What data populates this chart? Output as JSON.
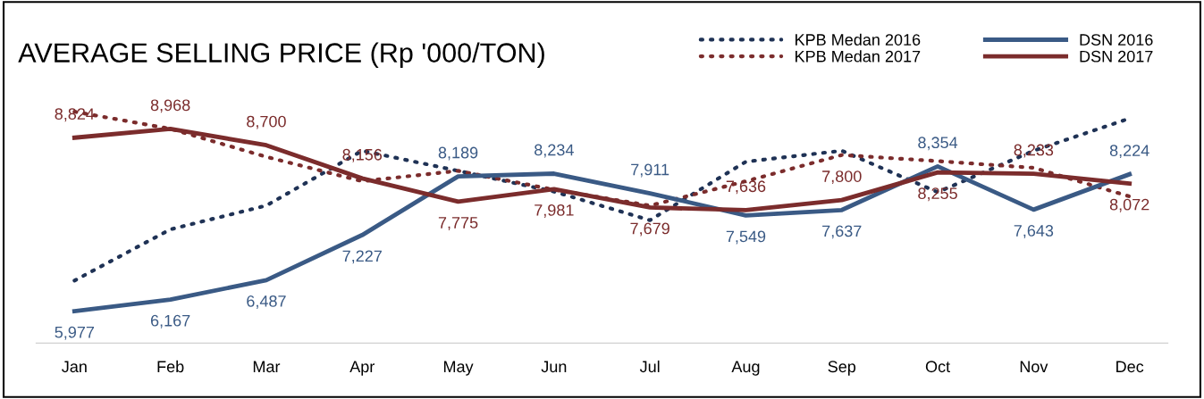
{
  "chart_data": {
    "type": "line",
    "title": "AVERAGE SELLING PRICE (Rp '000/TON)",
    "categories": [
      "Jan",
      "Feb",
      "Mar",
      "Apr",
      "May",
      "Jun",
      "Jul",
      "Aug",
      "Sep",
      "Oct",
      "Nov",
      "Dec"
    ],
    "tick_labels": "x",
    "grid": false,
    "legend": "top right",
    "marker": "none",
    "series": [
      {
        "name": "KPB Medan 2016",
        "color": "#1f3255",
        "line_style": "dotted",
        "values": [
          6480,
          7320,
          7710,
          8610,
          8280,
          7940,
          7470,
          8430,
          8610,
          7930,
          8610,
          9140
        ]
      },
      {
        "name": "KPB Medan 2017",
        "color": "#7b2c2c",
        "line_style": "dotted",
        "values": [
          9250,
          8970,
          8510,
          8110,
          8280,
          7970,
          7710,
          8110,
          8540,
          8440,
          8330,
          7860
        ]
      },
      {
        "name": "DSN 2016",
        "color": "#3a5a85",
        "line_style": "solid",
        "values": [
          5977,
          6167,
          6487,
          7227,
          8189,
          8234,
          7911,
          7549,
          7637,
          8354,
          7643,
          8224
        ],
        "value_labels": [
          "5,977",
          "6,167",
          "6,487",
          "7,227",
          "8,189",
          "8,234",
          "7,911",
          "7,549",
          "7,637",
          "8,354",
          "7,643",
          "8,224"
        ]
      },
      {
        "name": "DSN 2017",
        "color": "#7b2c2c",
        "line_style": "solid",
        "values": [
          8824,
          8968,
          8700,
          8156,
          7775,
          7981,
          7679,
          7636,
          7800,
          8255,
          8233,
          8072
        ],
        "value_labels": [
          "8,824",
          "8,968",
          "8,700",
          "8,156",
          "7,775",
          "7,981",
          "7,679",
          "7,636",
          "7,800",
          "8,255",
          "8,233",
          "8,072"
        ]
      }
    ]
  }
}
